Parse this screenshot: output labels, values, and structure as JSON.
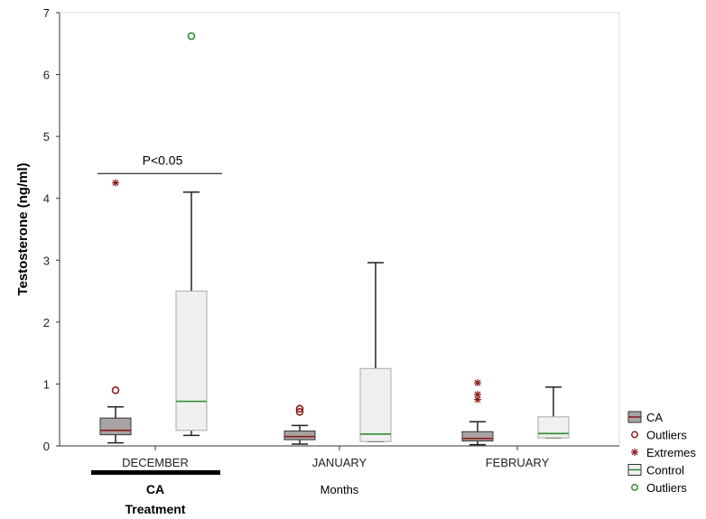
{
  "chart_data": {
    "type": "boxplot",
    "ylabel": "Testosterone (ng/ml)",
    "xlabel": "Months",
    "ylim": [
      0,
      7
    ],
    "yticks": [
      0,
      1,
      2,
      3,
      4,
      5,
      6,
      7
    ],
    "categories": [
      "DECEMBER",
      "JANUARY",
      "FEBRUARY"
    ],
    "highlight": {
      "category": "DECEMBER",
      "label_lines": [
        "CA",
        "Treatment"
      ]
    },
    "significance": {
      "label": "P<0.05",
      "y": 4.4,
      "between": [
        "CA",
        "Control"
      ],
      "category": "DECEMBER"
    },
    "grid": false,
    "legend_position": "right-bottom",
    "series": [
      {
        "name": "CA",
        "box_color": "#a9a4a4",
        "median_color": "#8b1a1a",
        "outlier_color": "#8b1a1a",
        "extreme_color": "#8b1a1a",
        "boxes": [
          {
            "category": "DECEMBER",
            "min": 0.05,
            "q1": 0.18,
            "median": 0.25,
            "q3": 0.45,
            "max": 0.63,
            "outliers": [
              0.9
            ],
            "extremes": [
              4.25
            ]
          },
          {
            "category": "JANUARY",
            "min": 0.03,
            "q1": 0.1,
            "median": 0.15,
            "q3": 0.24,
            "max": 0.33,
            "outliers": [
              0.55,
              0.6
            ],
            "extremes": []
          },
          {
            "category": "FEBRUARY",
            "min": 0.02,
            "q1": 0.08,
            "median": 0.12,
            "q3": 0.23,
            "max": 0.39,
            "outliers": [],
            "extremes": [
              0.75,
              0.83,
              1.02
            ]
          }
        ]
      },
      {
        "name": "Control",
        "box_color": "#f0f0f0",
        "median_color": "#2e8b2e",
        "outlier_color": "#2e8b2e",
        "boxes": [
          {
            "category": "DECEMBER",
            "min": 0.17,
            "q1": 0.25,
            "median": 0.72,
            "q3": 2.5,
            "max": 4.1,
            "outliers": [
              6.62
            ],
            "extremes": []
          },
          {
            "category": "JANUARY",
            "min": 0.07,
            "q1": 0.07,
            "median": 0.19,
            "q3": 1.25,
            "max": 2.96,
            "outliers": [],
            "extremes": []
          },
          {
            "category": "FEBRUARY",
            "min": 0.13,
            "q1": 0.13,
            "median": 0.2,
            "q3": 0.47,
            "max": 0.95,
            "outliers": [],
            "extremes": []
          }
        ]
      }
    ],
    "legend": [
      {
        "label": "CA",
        "kind": "box",
        "color": "#a9a4a4",
        "line": "#8b1a1a"
      },
      {
        "label": "Outliers",
        "kind": "circle",
        "color": "#8b1a1a"
      },
      {
        "label": "Extremes",
        "kind": "star",
        "color": "#8b1a1a"
      },
      {
        "label": "Control",
        "kind": "box",
        "color": "#f0f0f0",
        "line": "#2e8b2e"
      },
      {
        "label": "Outliers",
        "kind": "circle",
        "color": "#2e8b2e"
      }
    ]
  }
}
